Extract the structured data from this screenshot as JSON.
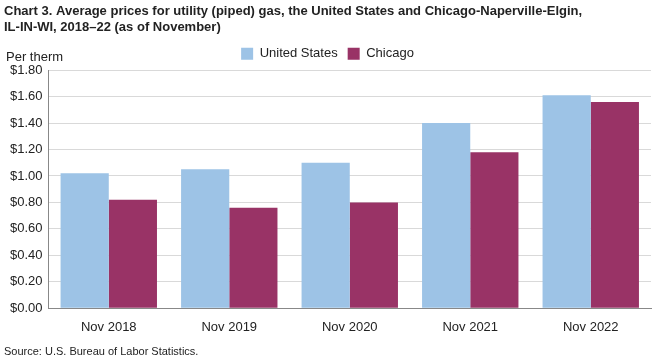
{
  "chart_data": {
    "type": "bar",
    "title": [
      "Chart 3. Average prices for utility (piped) gas, the United States and Chicago-Naperville-Elgin,",
      "IL-IN-WI, 2018–22 (as of November)"
    ],
    "y_label": "Per therm",
    "source": "Source: U.S. Bureau of Labor Statistics.",
    "categories": [
      "Nov 2018",
      "Nov 2019",
      "Nov 2020",
      "Nov 2021",
      "Nov 2022"
    ],
    "series": [
      {
        "name": "United States",
        "color": "#9dc3e6",
        "values": [
          1.02,
          1.05,
          1.1,
          1.4,
          1.61
        ]
      },
      {
        "name": "Chicago",
        "color": "#993366",
        "values": [
          0.82,
          0.76,
          0.8,
          1.18,
          1.56
        ]
      }
    ],
    "ylim": [
      0,
      1.8
    ],
    "yticks": [
      {
        "value": 0,
        "label": "$0.00"
      },
      {
        "value": 0.2,
        "label": "$0.20"
      },
      {
        "value": 0.4,
        "label": "$0.40"
      },
      {
        "value": 0.6,
        "label": "$0.60"
      },
      {
        "value": 0.8,
        "label": "$0.80"
      },
      {
        "value": 1.0,
        "label": "$1.00"
      },
      {
        "value": 1.2,
        "label": "$1.20"
      },
      {
        "value": 1.4,
        "label": "$1.40"
      },
      {
        "value": 1.6,
        "label": "$1.60"
      },
      {
        "value": 1.8,
        "label": "$1.80"
      }
    ],
    "grid": true,
    "legend": "top"
  }
}
